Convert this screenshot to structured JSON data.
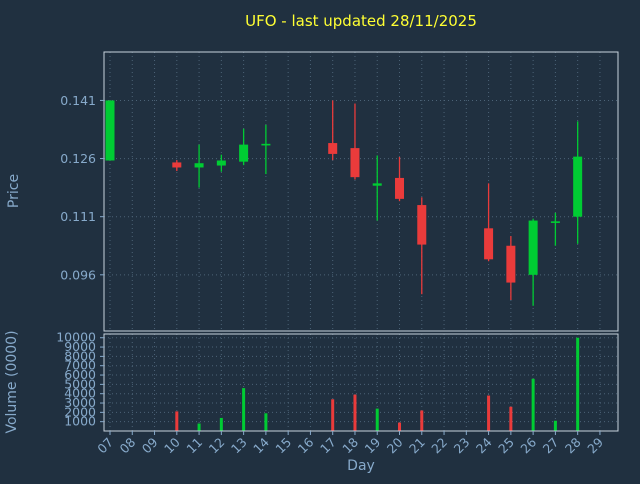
{
  "chart_data": {
    "type": "candlestick_with_volume",
    "title": "UFO - last updated 28/11/2025",
    "xlabel": "Day",
    "ylabel_price": "Price",
    "ylabel_volume": "Volume (0000)",
    "x_ticks": [
      "07",
      "08",
      "09",
      "10",
      "11",
      "12",
      "13",
      "14",
      "15",
      "16",
      "17",
      "18",
      "19",
      "20",
      "21",
      "22",
      "23",
      "24",
      "25",
      "26",
      "27",
      "28",
      "29"
    ],
    "price_ticks": [
      0.096,
      0.111,
      0.126,
      0.141
    ],
    "volume_ticks": [
      1000,
      2000,
      3000,
      4000,
      5000,
      6000,
      7000,
      8000,
      9000,
      10000
    ],
    "price_ylim": [
      0.0815,
      0.1535
    ],
    "volume_ylim": [
      0,
      10400
    ],
    "day_range": [
      7,
      29
    ],
    "grid": true,
    "colors": {
      "background": "#203040",
      "up": "#00cc33",
      "down": "#ea3b3b",
      "title": "#ffff33",
      "axis_text": "#87aacb",
      "grid_line": "#4c6377",
      "frame": "#c9d4de"
    },
    "candles": [
      {
        "day": 7,
        "open": 0.1255,
        "high": 0.141,
        "low": 0.1255,
        "close": 0.141,
        "volume": 0
      },
      {
        "day": 10,
        "open": 0.125,
        "high": 0.1256,
        "low": 0.1228,
        "close": 0.1237,
        "volume": 2100
      },
      {
        "day": 11,
        "open": 0.1237,
        "high": 0.1296,
        "low": 0.1185,
        "close": 0.1248,
        "volume": 800
      },
      {
        "day": 12,
        "open": 0.1242,
        "high": 0.127,
        "low": 0.1226,
        "close": 0.1255,
        "volume": 1400
      },
      {
        "day": 13,
        "open": 0.1252,
        "high": 0.1337,
        "low": 0.1243,
        "close": 0.1296,
        "volume": 4600
      },
      {
        "day": 14,
        "open": 0.1296,
        "high": 0.1347,
        "low": 0.122,
        "close": 0.1298,
        "volume": 1900
      },
      {
        "day": 17,
        "open": 0.13,
        "high": 0.141,
        "low": 0.1256,
        "close": 0.1272,
        "volume": 3400
      },
      {
        "day": 18,
        "open": 0.1287,
        "high": 0.1402,
        "low": 0.1206,
        "close": 0.1212,
        "volume": 3900
      },
      {
        "day": 19,
        "open": 0.119,
        "high": 0.1268,
        "low": 0.11,
        "close": 0.1196,
        "volume": 2400
      },
      {
        "day": 20,
        "open": 0.121,
        "high": 0.1264,
        "low": 0.115,
        "close": 0.1156,
        "volume": 900
      },
      {
        "day": 21,
        "open": 0.114,
        "high": 0.116,
        "low": 0.091,
        "close": 0.1038,
        "volume": 2200
      },
      {
        "day": 24,
        "open": 0.108,
        "high": 0.1196,
        "low": 0.0995,
        "close": 0.1,
        "volume": 3800
      },
      {
        "day": 25,
        "open": 0.1035,
        "high": 0.106,
        "low": 0.0895,
        "close": 0.094,
        "volume": 2600
      },
      {
        "day": 26,
        "open": 0.096,
        "high": 0.1105,
        "low": 0.088,
        "close": 0.11,
        "volume": 5600
      },
      {
        "day": 27,
        "open": 0.1095,
        "high": 0.112,
        "low": 0.1035,
        "close": 0.1098,
        "volume": 1100
      },
      {
        "day": 28,
        "open": 0.111,
        "high": 0.1356,
        "low": 0.104,
        "close": 0.1265,
        "volume": 10000
      }
    ]
  }
}
